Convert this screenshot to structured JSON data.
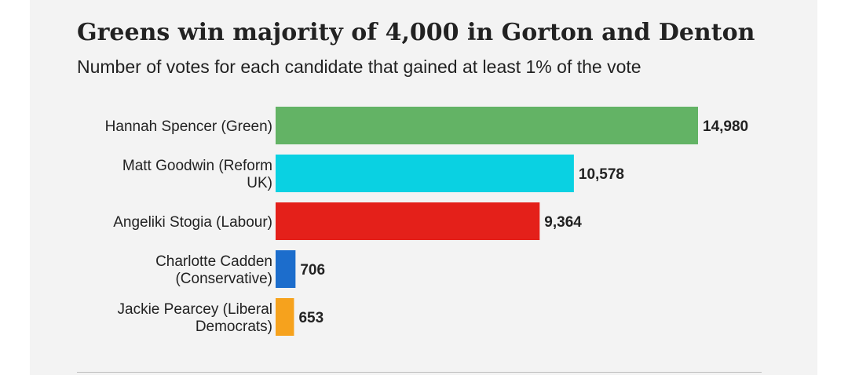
{
  "title": "Greens win majority of 4,000 in Gorton and Denton",
  "subtitle": "Number of votes for each candidate that gained at least 1% of the vote",
  "chart_data": {
    "type": "bar",
    "orientation": "horizontal",
    "title": "Greens win majority of 4,000 in Gorton and Denton",
    "subtitle": "Number of votes for each candidate that gained at least 1% of the vote",
    "xlabel": "",
    "ylabel": "",
    "grid": false,
    "categories": [
      [
        "Hannah Spencer (Green)"
      ],
      [
        "Matt Goodwin (Reform",
        "UK)"
      ],
      [
        "Angeliki Stogia (Labour)"
      ],
      [
        "Charlotte Cadden",
        "(Conservative)"
      ],
      [
        "Jackie Pearcey (Liberal",
        "Democrats)"
      ]
    ],
    "values": [
      14980,
      10578,
      9364,
      706,
      653
    ],
    "value_labels": [
      "14,980",
      "10,578",
      "9,364",
      "706",
      "653"
    ],
    "colors": [
      "#63b365",
      "#0ad1e2",
      "#e4201a",
      "#1c6dcc",
      "#f6a21d"
    ],
    "xlim": [
      0,
      14980
    ]
  }
}
